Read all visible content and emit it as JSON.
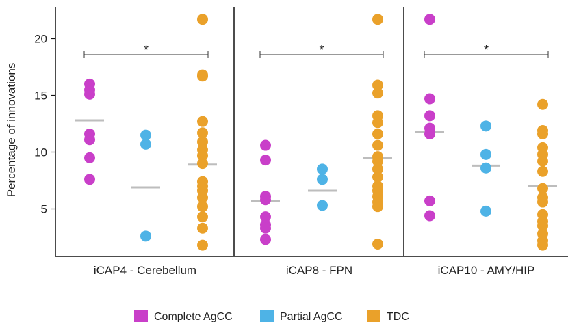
{
  "chart_data": {
    "type": "scatter",
    "ylabel": "Percentage of innovations",
    "ylim": [
      0,
      23
    ],
    "yticks": [
      5,
      10,
      15,
      20
    ],
    "groups": [
      "Complete AgCC",
      "Partial AgCC",
      "TDC"
    ],
    "colors": {
      "Complete AgCC": "#c93fc9",
      "Partial AgCC": "#4eb3e6",
      "TDC": "#eaa12a",
      "median": "#bdbdbd"
    },
    "legend_position": "bottom",
    "panels": [
      {
        "label": "iCAP4 - Cerebellum",
        "significance": "*",
        "series": [
          {
            "name": "Complete AgCC",
            "values": [
              16.0,
              15.5,
              15.1,
              11.6,
              11.1,
              9.5,
              7.6
            ],
            "median": 12.8
          },
          {
            "name": "Partial AgCC",
            "values": [
              11.5,
              10.7,
              2.6
            ],
            "median": 6.9
          },
          {
            "name": "TDC",
            "values": [
              21.7,
              16.8,
              16.7,
              12.7,
              11.7,
              10.9,
              10.2,
              9.7,
              9.0,
              7.4,
              7.0,
              6.6,
              6.0,
              5.2,
              4.3,
              3.3,
              1.8
            ],
            "median": 8.9
          }
        ]
      },
      {
        "label": "iCAP8 - FPN",
        "significance": "*",
        "series": [
          {
            "name": "Complete AgCC",
            "values": [
              10.6,
              9.3,
              6.1,
              5.8,
              4.3,
              3.6,
              3.3,
              2.3
            ],
            "median": 5.7
          },
          {
            "name": "Partial AgCC",
            "values": [
              8.5,
              7.6,
              5.3
            ],
            "median": 6.6
          },
          {
            "name": "TDC",
            "values": [
              21.7,
              15.9,
              15.2,
              13.2,
              12.6,
              11.6,
              10.6,
              9.6,
              9.2,
              8.5,
              7.8,
              7.0,
              6.6,
              6.1,
              5.6,
              5.2,
              1.9
            ],
            "median": 9.5
          }
        ]
      },
      {
        "label": "iCAP10 - AMY/HIP",
        "significance": "*",
        "series": [
          {
            "name": "Complete AgCC",
            "values": [
              21.7,
              14.7,
              13.2,
              12.1,
              11.6,
              5.7,
              4.4
            ],
            "median": 11.8
          },
          {
            "name": "Partial AgCC",
            "values": [
              12.3,
              9.8,
              8.6,
              4.8
            ],
            "median": 8.8
          },
          {
            "name": "TDC",
            "values": [
              14.2,
              11.9,
              11.6,
              10.4,
              9.8,
              9.2,
              8.3,
              6.8,
              6.0,
              5.6,
              4.5,
              3.9,
              3.5,
              2.8,
              2.2,
              1.8
            ],
            "median": 7.0
          }
        ]
      }
    ]
  }
}
